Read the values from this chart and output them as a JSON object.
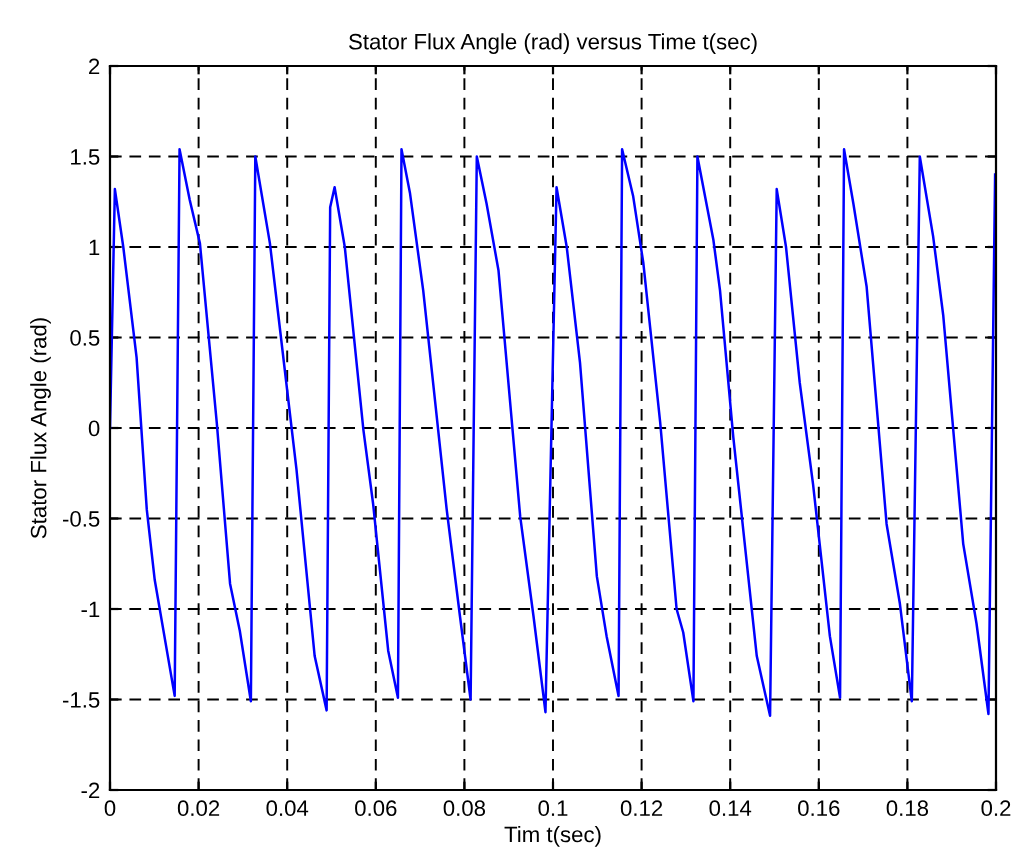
{
  "chart_data": {
    "type": "line",
    "title": "Stator Flux Angle (rad) versus Time t(sec)",
    "xlabel": "Tim t(sec)",
    "ylabel": "Stator Flux Angle (rad)",
    "xlim": [
      0,
      0.2
    ],
    "xticks": [
      0,
      0.02,
      0.04,
      0.06,
      0.08,
      0.1,
      0.12,
      0.14,
      0.16,
      0.18,
      0.2
    ],
    "ylim": [
      -2,
      2
    ],
    "yticks": [
      -2,
      -1.5,
      -1,
      -0.5,
      0,
      0.5,
      1,
      1.5,
      2
    ],
    "grid": true,
    "line_style": "solid",
    "marker": "none",
    "series": [
      {
        "color": "#0000ff",
        "x": [
          0,
          0.0011,
          0.003,
          0.006,
          0.0083,
          0.0101,
          0.0146,
          0.0157,
          0.018,
          0.0203,
          0.0241,
          0.0271,
          0.0293,
          0.0318,
          0.0328,
          0.0361,
          0.0384,
          0.0421,
          0.0462,
          0.0489,
          0.0497,
          0.0507,
          0.053,
          0.0572,
          0.0594,
          0.0628,
          0.065,
          0.0658,
          0.0677,
          0.0707,
          0.076,
          0.079,
          0.0814,
          0.0828,
          0.085,
          0.0877,
          0.0926,
          0.0956,
          0.0983,
          0.1008,
          0.1031,
          0.1061,
          0.1099,
          0.1121,
          0.1148,
          0.1156,
          0.1181,
          0.1204,
          0.1242,
          0.1279,
          0.1294,
          0.1317,
          0.1326,
          0.1362,
          0.1377,
          0.1407,
          0.146,
          0.149,
          0.1505,
          0.1526,
          0.1557,
          0.1587,
          0.1625,
          0.1648,
          0.1657,
          0.1678,
          0.1708,
          0.1753,
          0.1783,
          0.181,
          0.1828,
          0.1858,
          0.1881,
          0.1926,
          0.1956,
          0.1983,
          0.1998
        ],
        "values": [
          0,
          1.32,
          1.0,
          0.39,
          -0.45,
          -0.84,
          -1.48,
          1.54,
          1.26,
          1.02,
          0.03,
          -0.86,
          -1.12,
          -1.51,
          1.5,
          1.02,
          0.54,
          -0.23,
          -1.26,
          -1.56,
          1.22,
          1.33,
          1.0,
          -0.01,
          -0.42,
          -1.23,
          -1.49,
          1.54,
          1.3,
          0.76,
          -0.45,
          -1.04,
          -1.5,
          1.5,
          1.24,
          0.87,
          -0.49,
          -1.04,
          -1.57,
          1.33,
          1.0,
          0.36,
          -0.82,
          -1.15,
          -1.48,
          1.54,
          1.28,
          0.91,
          0.03,
          -1.0,
          -1.13,
          -1.51,
          1.5,
          1.04,
          0.76,
          -0.05,
          -1.26,
          -1.59,
          1.32,
          1.0,
          0.25,
          -0.31,
          -1.15,
          -1.49,
          1.54,
          1.24,
          0.78,
          -0.53,
          -0.97,
          -1.51,
          1.5,
          1.06,
          0.62,
          -0.64,
          -1.08,
          -1.58,
          1.4
        ]
      }
    ]
  }
}
